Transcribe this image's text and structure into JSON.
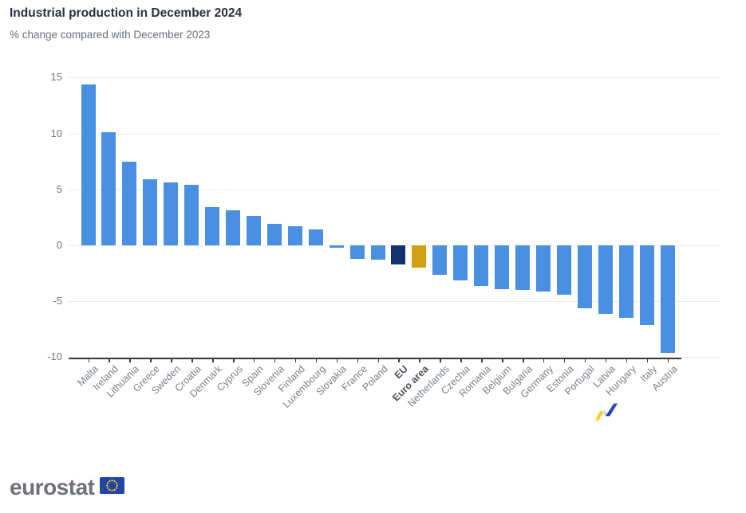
{
  "header": {
    "title": "Industrial production in December 2024",
    "subtitle": "% change compared with December 2023"
  },
  "chart_data": {
    "type": "bar",
    "title": "Industrial production in December 2024",
    "subtitle": "% change compared with December 2023",
    "categories": [
      "Malta",
      "Ireland",
      "Lithuania",
      "Greece",
      "Sweden",
      "Croatia",
      "Denmark",
      "Cyprus",
      "Spain",
      "Slovenia",
      "Finland",
      "Luxembourg",
      "Slovakia",
      "France",
      "Poland",
      "EU",
      "Euro area",
      "Netherlands",
      "Czechia",
      "Romania",
      "Belgium",
      "Bulgaria",
      "Germany",
      "Estonia",
      "Portugal",
      "Latvia",
      "Hungary",
      "Italy",
      "Austria"
    ],
    "values": [
      14.4,
      10.1,
      7.5,
      5.9,
      5.6,
      5.4,
      3.4,
      3.1,
      2.6,
      1.9,
      1.7,
      1.4,
      -0.2,
      -1.2,
      -1.3,
      -1.7,
      -2.0,
      -2.6,
      -3.1,
      -3.6,
      -3.9,
      -4.0,
      -4.1,
      -4.4,
      -5.6,
      -6.1,
      -6.5,
      -7.1,
      -9.6
    ],
    "bold_categories": [
      "EU",
      "Euro area"
    ],
    "yticks": [
      15,
      10,
      5,
      0,
      -5,
      -10
    ],
    "ylim": [
      -10.3,
      15.3
    ],
    "xlabel": "",
    "ylabel": "",
    "grid": true,
    "legend": "none",
    "colors": {
      "bar": "#4a90e2",
      "EU": "#13316f",
      "Euro area": "#d2a014"
    }
  },
  "footer": {
    "logo_text": "eurostat",
    "flag_icon": "eu-flag-icon",
    "flag_blue": "#2544a8",
    "star_gold": "#f7d117"
  },
  "decoration": {
    "ribbon_icon": "trend-ribbon-icon",
    "yellow": "#f5c400",
    "gray": "#b9bbbe",
    "blue": "#2050c8"
  }
}
